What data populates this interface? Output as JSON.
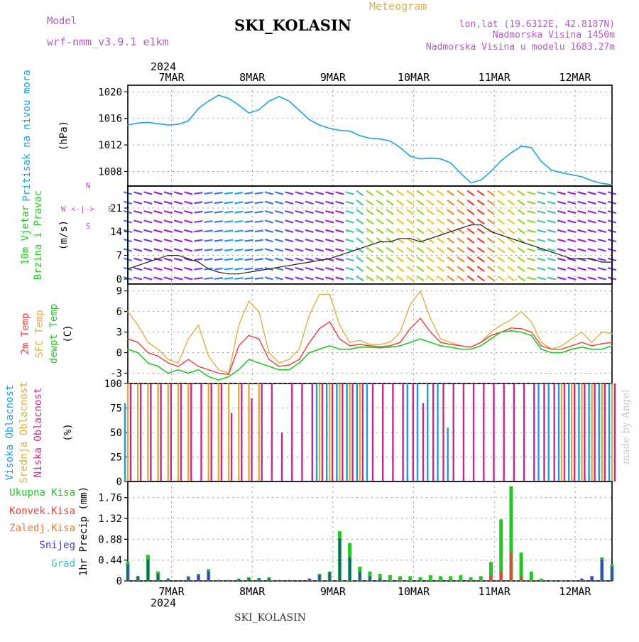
{
  "header": {
    "model_label": "Model",
    "model_value": "wrf-nmm_v3.9.1 e1km",
    "title": "SKI_KOLASIN",
    "meteogram_label": "Meteogram",
    "lonlat": "lon,lat (19.6312E, 42.8187N)",
    "elevation": "Nadmorska Visina 1450m",
    "model_elevation": "Nadmorska Visina u modelu 1683.27m",
    "credit": "made by Angel",
    "footer_station": "SKI_KOLASIN"
  },
  "colors": {
    "pressure": "#1ca3e8",
    "temp2m": "#f03c3c",
    "sfctemp": "#e0b040",
    "dewpt": "#22c822",
    "high_cloud": "#1e9be8",
    "mid_cloud": "#dcae38",
    "low_cloud": "#c8288c",
    "total_precip": "#22c822",
    "conv_precip": "#f03c3c",
    "frz_precip": "#f07830",
    "snow": "#3c3cd2",
    "hail": "#28c8c8",
    "model_label": "#b45ac8"
  },
  "axes": {
    "year_top": "2024",
    "year_bottom": "2024",
    "days": [
      "7MAR",
      "8MAR",
      "9MAR",
      "10MAR",
      "11MAR",
      "12MAR"
    ],
    "panels": [
      {
        "id": "pressure",
        "labels": [
          "Pritisak na nivou mora"
        ],
        "unit": "(hPa)",
        "ticks": [
          "1020",
          "1016",
          "1012",
          "1008"
        ]
      },
      {
        "id": "wind",
        "labels": [
          "10m Vjetar",
          "Brzina i Pravac"
        ],
        "unit": "(m/s)",
        "ticks": [
          "21",
          "14",
          "7",
          "0"
        ],
        "compass": {
          "w": "W",
          "e": "E",
          "n": "N",
          "s": "S",
          "arrows": "<-|->"
        }
      },
      {
        "id": "temperature",
        "labels": [
          "2m Temp",
          "SFC Temp",
          "dewpt Temp"
        ],
        "unit": "(C)",
        "ticks": [
          "9",
          "6",
          "3",
          "0",
          "-3"
        ]
      },
      {
        "id": "cloud",
        "labels": [
          "Visoka Oblacnost",
          "Srednja Oblacnost",
          "Niska Oblacnost"
        ],
        "unit": "(%)",
        "ticks": [
          "100",
          "75",
          "50",
          "25",
          "0"
        ]
      },
      {
        "id": "precip",
        "labels": [
          "Ukupna Kisa",
          "Konvek.Kisa",
          "Zaledj.Kisa",
          "Snijeg",
          "Grad"
        ],
        "unit": "1hr Precip (mm)",
        "ticks": [
          "1.76",
          "1.32",
          "0.88",
          "0.44",
          "0"
        ]
      }
    ]
  },
  "chart_data": [
    {
      "type": "line",
      "x": [
        0,
        3,
        6,
        9,
        12,
        15,
        18,
        21,
        24,
        27,
        30,
        33,
        36,
        39,
        42,
        45,
        48,
        51,
        54,
        57,
        60,
        63,
        66,
        69,
        72,
        75,
        78,
        81,
        84,
        87,
        90,
        93,
        96,
        99,
        102,
        105,
        108,
        111,
        114,
        117,
        120,
        123,
        126,
        129,
        132,
        135,
        138,
        141,
        144
      ],
      "series": [
        {
          "name": "Pritisak na nivou mora",
          "values": [
            1015.0,
            1015.3,
            1015.4,
            1015.2,
            1015.0,
            1015.1,
            1015.6,
            1017.5,
            1018.6,
            1019.5,
            1019.0,
            1018.0,
            1016.8,
            1017.3,
            1018.6,
            1019.3,
            1018.6,
            1017.2,
            1015.8,
            1015.0,
            1014.5,
            1014.2,
            1014.1,
            1013.4,
            1013.0,
            1012.9,
            1012.6,
            1011.6,
            1010.3,
            1009.9,
            1010.0,
            1009.9,
            1009.3,
            1007.7,
            1006.3,
            1006.7,
            1008.0,
            1009.6,
            1010.8,
            1011.8,
            1011.6,
            1009.5,
            1008.2,
            1007.8,
            1007.5,
            1007.2,
            1006.6,
            1006.2,
            1006.0
          ]
        }
      ],
      "ylim": [
        1005.8,
        1021
      ],
      "yticks": [
        1008,
        1012,
        1016,
        1020
      ],
      "xticks_days": [
        "7MAR",
        "8MAR",
        "9MAR",
        "10MAR",
        "11MAR",
        "12MAR"
      ]
    },
    {
      "type": "line",
      "x": [
        0,
        3,
        6,
        9,
        12,
        15,
        18,
        21,
        24,
        27,
        30,
        33,
        36,
        39,
        42,
        45,
        48,
        51,
        54,
        57,
        60,
        63,
        66,
        69,
        72,
        75,
        78,
        81,
        84,
        87,
        90,
        93,
        96,
        99,
        102,
        105,
        108,
        111,
        114,
        117,
        120,
        123,
        126,
        129,
        132,
        135,
        138,
        141,
        144
      ],
      "series": [
        {
          "name": "10m Vjetar",
          "values": [
            3,
            4,
            5,
            6,
            7,
            7,
            6,
            5,
            3,
            2,
            1.5,
            1.5,
            2,
            2.5,
            3,
            3.5,
            4,
            4.5,
            5,
            5.5,
            6,
            7,
            8,
            9,
            10,
            11,
            11,
            12,
            12,
            11,
            12,
            13,
            14,
            15,
            16,
            16,
            14,
            13,
            12,
            11,
            10,
            9,
            8,
            7,
            6,
            6,
            6,
            5,
            5
          ]
        }
      ],
      "ylim": [
        -1.5,
        27.5
      ],
      "yticks": [
        0,
        7,
        14,
        21
      ]
    },
    {
      "type": "line",
      "x": [
        0,
        3,
        6,
        9,
        12,
        15,
        18,
        21,
        24,
        27,
        30,
        33,
        36,
        39,
        42,
        45,
        48,
        51,
        54,
        57,
        60,
        63,
        66,
        69,
        72,
        75,
        78,
        81,
        84,
        87,
        90,
        93,
        96,
        99,
        102,
        105,
        108,
        111,
        114,
        117,
        120,
        123,
        126,
        129,
        132,
        135,
        138,
        141,
        144
      ],
      "series": [
        {
          "name": "2m Temp",
          "values": [
            2.0,
            1.5,
            0.0,
            -0.5,
            -1.5,
            -2.0,
            -1.0,
            -2.0,
            -2.5,
            -3.0,
            -3.2,
            1.0,
            2.5,
            2.0,
            -1.0,
            -2.0,
            -1.8,
            -1.0,
            1.5,
            3.5,
            4.5,
            2.0,
            1.0,
            1.2,
            1.0,
            0.9,
            1.0,
            1.5,
            3.5,
            5.0,
            3.0,
            1.5,
            1.2,
            1.0,
            0.8,
            1.5,
            2.5,
            3.0,
            3.6,
            3.5,
            3.0,
            1.0,
            0.5,
            0.5,
            1.0,
            1.5,
            1.0,
            1.3,
            1.5
          ]
        },
        {
          "name": "SFC Temp",
          "values": [
            6.0,
            4.0,
            1.5,
            0.5,
            -1.0,
            -1.5,
            2.0,
            4.0,
            -0.5,
            -2.5,
            -3.0,
            4.0,
            7.5,
            6.0,
            0.0,
            -1.5,
            -1.0,
            0.5,
            5.5,
            8.5,
            8.5,
            4.0,
            1.5,
            1.8,
            1.2,
            1.2,
            1.5,
            3.0,
            7.0,
            9.0,
            5.0,
            2.0,
            1.5,
            1.0,
            0.8,
            1.5,
            3.0,
            4.0,
            4.8,
            6.0,
            4.5,
            1.5,
            0.5,
            1.0,
            2.0,
            3.0,
            1.5,
            3.0,
            2.8
          ]
        },
        {
          "name": "dewpt Temp",
          "values": [
            0.5,
            0.0,
            -1.5,
            -2.0,
            -3.0,
            -2.5,
            -3.0,
            -2.5,
            -3.5,
            -4.0,
            -3.5,
            -2.5,
            -1.0,
            -1.5,
            -2.0,
            -2.5,
            -2.5,
            -1.5,
            0.0,
            0.5,
            1.0,
            0.5,
            0.5,
            0.8,
            0.8,
            0.7,
            0.8,
            1.0,
            1.5,
            2.0,
            1.5,
            1.0,
            0.8,
            0.5,
            0.5,
            1.0,
            2.0,
            3.0,
            3.2,
            3.0,
            2.5,
            0.5,
            0.0,
            0.0,
            0.5,
            0.8,
            0.5,
            0.5,
            1.0
          ]
        }
      ],
      "ylim": [
        -4.5,
        10
      ],
      "yticks": [
        -3,
        0,
        3,
        6,
        9
      ]
    },
    {
      "type": "bar",
      "x": [
        0,
        3,
        6,
        9,
        12,
        15,
        18,
        21,
        24,
        27,
        30,
        33,
        36,
        39,
        42,
        45,
        48,
        51,
        54,
        57,
        60,
        63,
        66,
        69,
        72,
        75,
        78,
        81,
        84,
        87,
        90,
        93,
        96,
        99,
        102,
        105,
        108,
        111,
        114,
        117,
        120,
        123,
        126,
        129,
        132,
        135,
        138,
        141,
        144
      ],
      "series": [
        {
          "name": "Visoka Oblacnost",
          "values": [
            80,
            0,
            0,
            0,
            0,
            0,
            0,
            0,
            0,
            0,
            0,
            0,
            0,
            0,
            0,
            0,
            0,
            0,
            0,
            100,
            100,
            100,
            100,
            100,
            100,
            0,
            0,
            0,
            100,
            100,
            100,
            100,
            55,
            0,
            0,
            0,
            0,
            0,
            0,
            0,
            0,
            100,
            100,
            100,
            100,
            100,
            100,
            100,
            100
          ]
        },
        {
          "name": "Srednja Oblacnost",
          "values": [
            100,
            100,
            100,
            100,
            100,
            100,
            100,
            0,
            100,
            100,
            100,
            100,
            100,
            100,
            0,
            0,
            0,
            0,
            0,
            100,
            100,
            100,
            100,
            100,
            0,
            0,
            0,
            0,
            0,
            0,
            0,
            0,
            0,
            0,
            0,
            0,
            0,
            0,
            0,
            0,
            0,
            0,
            0,
            100,
            100,
            100,
            100,
            100,
            100
          ]
        },
        {
          "name": "Niska Oblacnost",
          "values": [
            100,
            100,
            100,
            100,
            100,
            100,
            100,
            100,
            100,
            100,
            70,
            100,
            85,
            100,
            100,
            50,
            100,
            100,
            100,
            100,
            100,
            100,
            100,
            100,
            100,
            100,
            100,
            100,
            100,
            80,
            100,
            100,
            100,
            100,
            100,
            100,
            100,
            100,
            100,
            100,
            100,
            100,
            100,
            100,
            100,
            100,
            100,
            100,
            100
          ]
        }
      ],
      "ylim": [
        0,
        100
      ],
      "yticks": [
        0,
        25,
        50,
        75,
        100
      ]
    },
    {
      "type": "bar",
      "x": [
        0,
        3,
        6,
        9,
        12,
        15,
        18,
        21,
        24,
        27,
        30,
        33,
        36,
        39,
        42,
        45,
        48,
        51,
        54,
        57,
        60,
        63,
        66,
        69,
        72,
        75,
        78,
        81,
        84,
        87,
        90,
        93,
        96,
        99,
        102,
        105,
        108,
        111,
        114,
        117,
        120,
        123,
        126,
        129,
        132,
        135,
        138,
        141,
        144
      ],
      "series": [
        {
          "name": "Ukupna Kisa",
          "values": [
            0.4,
            0.1,
            0.55,
            0.2,
            0.05,
            0.0,
            0.1,
            0.15,
            0.25,
            0.02,
            0.02,
            0.05,
            0.08,
            0.06,
            0.08,
            0.02,
            0.02,
            0.0,
            0.05,
            0.15,
            0.2,
            1.05,
            0.8,
            0.3,
            0.2,
            0.15,
            0.12,
            0.1,
            0.1,
            0.08,
            0.12,
            0.1,
            0.1,
            0.12,
            0.08,
            0.1,
            0.4,
            1.3,
            2.0,
            0.6,
            0.2,
            0.05,
            0.02,
            0.02,
            0.02,
            0.05,
            0.1,
            0.5,
            0.35
          ]
        },
        {
          "name": "Konvek.Kisa",
          "values": [
            0,
            0,
            0,
            0,
            0,
            0,
            0,
            0,
            0,
            0,
            0,
            0,
            0,
            0,
            0,
            0,
            0,
            0,
            0,
            0,
            0,
            0,
            0,
            0,
            0,
            0,
            0,
            0,
            0,
            0,
            0,
            0,
            0,
            0,
            0,
            0,
            0.1,
            0.2,
            0.6,
            0.1,
            0,
            0,
            0,
            0,
            0,
            0,
            0,
            0,
            0
          ]
        },
        {
          "name": "Zaledj.Kisa",
          "values": [
            0.3,
            0,
            0,
            0,
            0,
            0,
            0,
            0,
            0,
            0,
            0,
            0,
            0,
            0,
            0,
            0,
            0,
            0,
            0,
            0,
            0,
            0,
            0,
            0,
            0,
            0,
            0,
            0,
            0,
            0,
            0,
            0,
            0,
            0,
            0,
            0,
            0,
            0,
            0,
            0,
            0,
            0,
            0,
            0,
            0,
            0,
            0,
            0,
            0
          ]
        },
        {
          "name": "Snijeg",
          "values": [
            0.35,
            0.1,
            0.45,
            0.15,
            0.05,
            0.0,
            0.08,
            0.12,
            0.2,
            0.02,
            0.02,
            0.03,
            0.05,
            0.05,
            0.05,
            0.02,
            0.02,
            0.0,
            0.05,
            0.12,
            0.18,
            0.9,
            0.5,
            0.2,
            0.1,
            0.05,
            0.0,
            0.0,
            0.0,
            0.0,
            0.0,
            0.0,
            0.0,
            0.0,
            0.0,
            0.0,
            0.0,
            0.0,
            0.0,
            0.0,
            0.0,
            0.0,
            0.0,
            0.0,
            0.0,
            0.05,
            0.1,
            0.45,
            0.3
          ]
        },
        {
          "name": "Grad",
          "values": [
            0,
            0,
            0,
            0,
            0,
            0,
            0,
            0,
            0,
            0,
            0,
            0,
            0,
            0,
            0,
            0,
            0,
            0,
            0,
            0,
            0,
            0,
            0,
            0,
            0,
            0,
            0,
            0,
            0,
            0,
            0,
            0,
            0,
            0,
            0,
            0,
            0,
            0,
            0,
            0,
            0,
            0,
            0,
            0,
            0,
            0,
            0,
            0,
            0
          ]
        }
      ],
      "ylim": [
        0,
        2.1
      ],
      "yticks": [
        0,
        0.44,
        0.88,
        1.32,
        1.76
      ]
    }
  ]
}
